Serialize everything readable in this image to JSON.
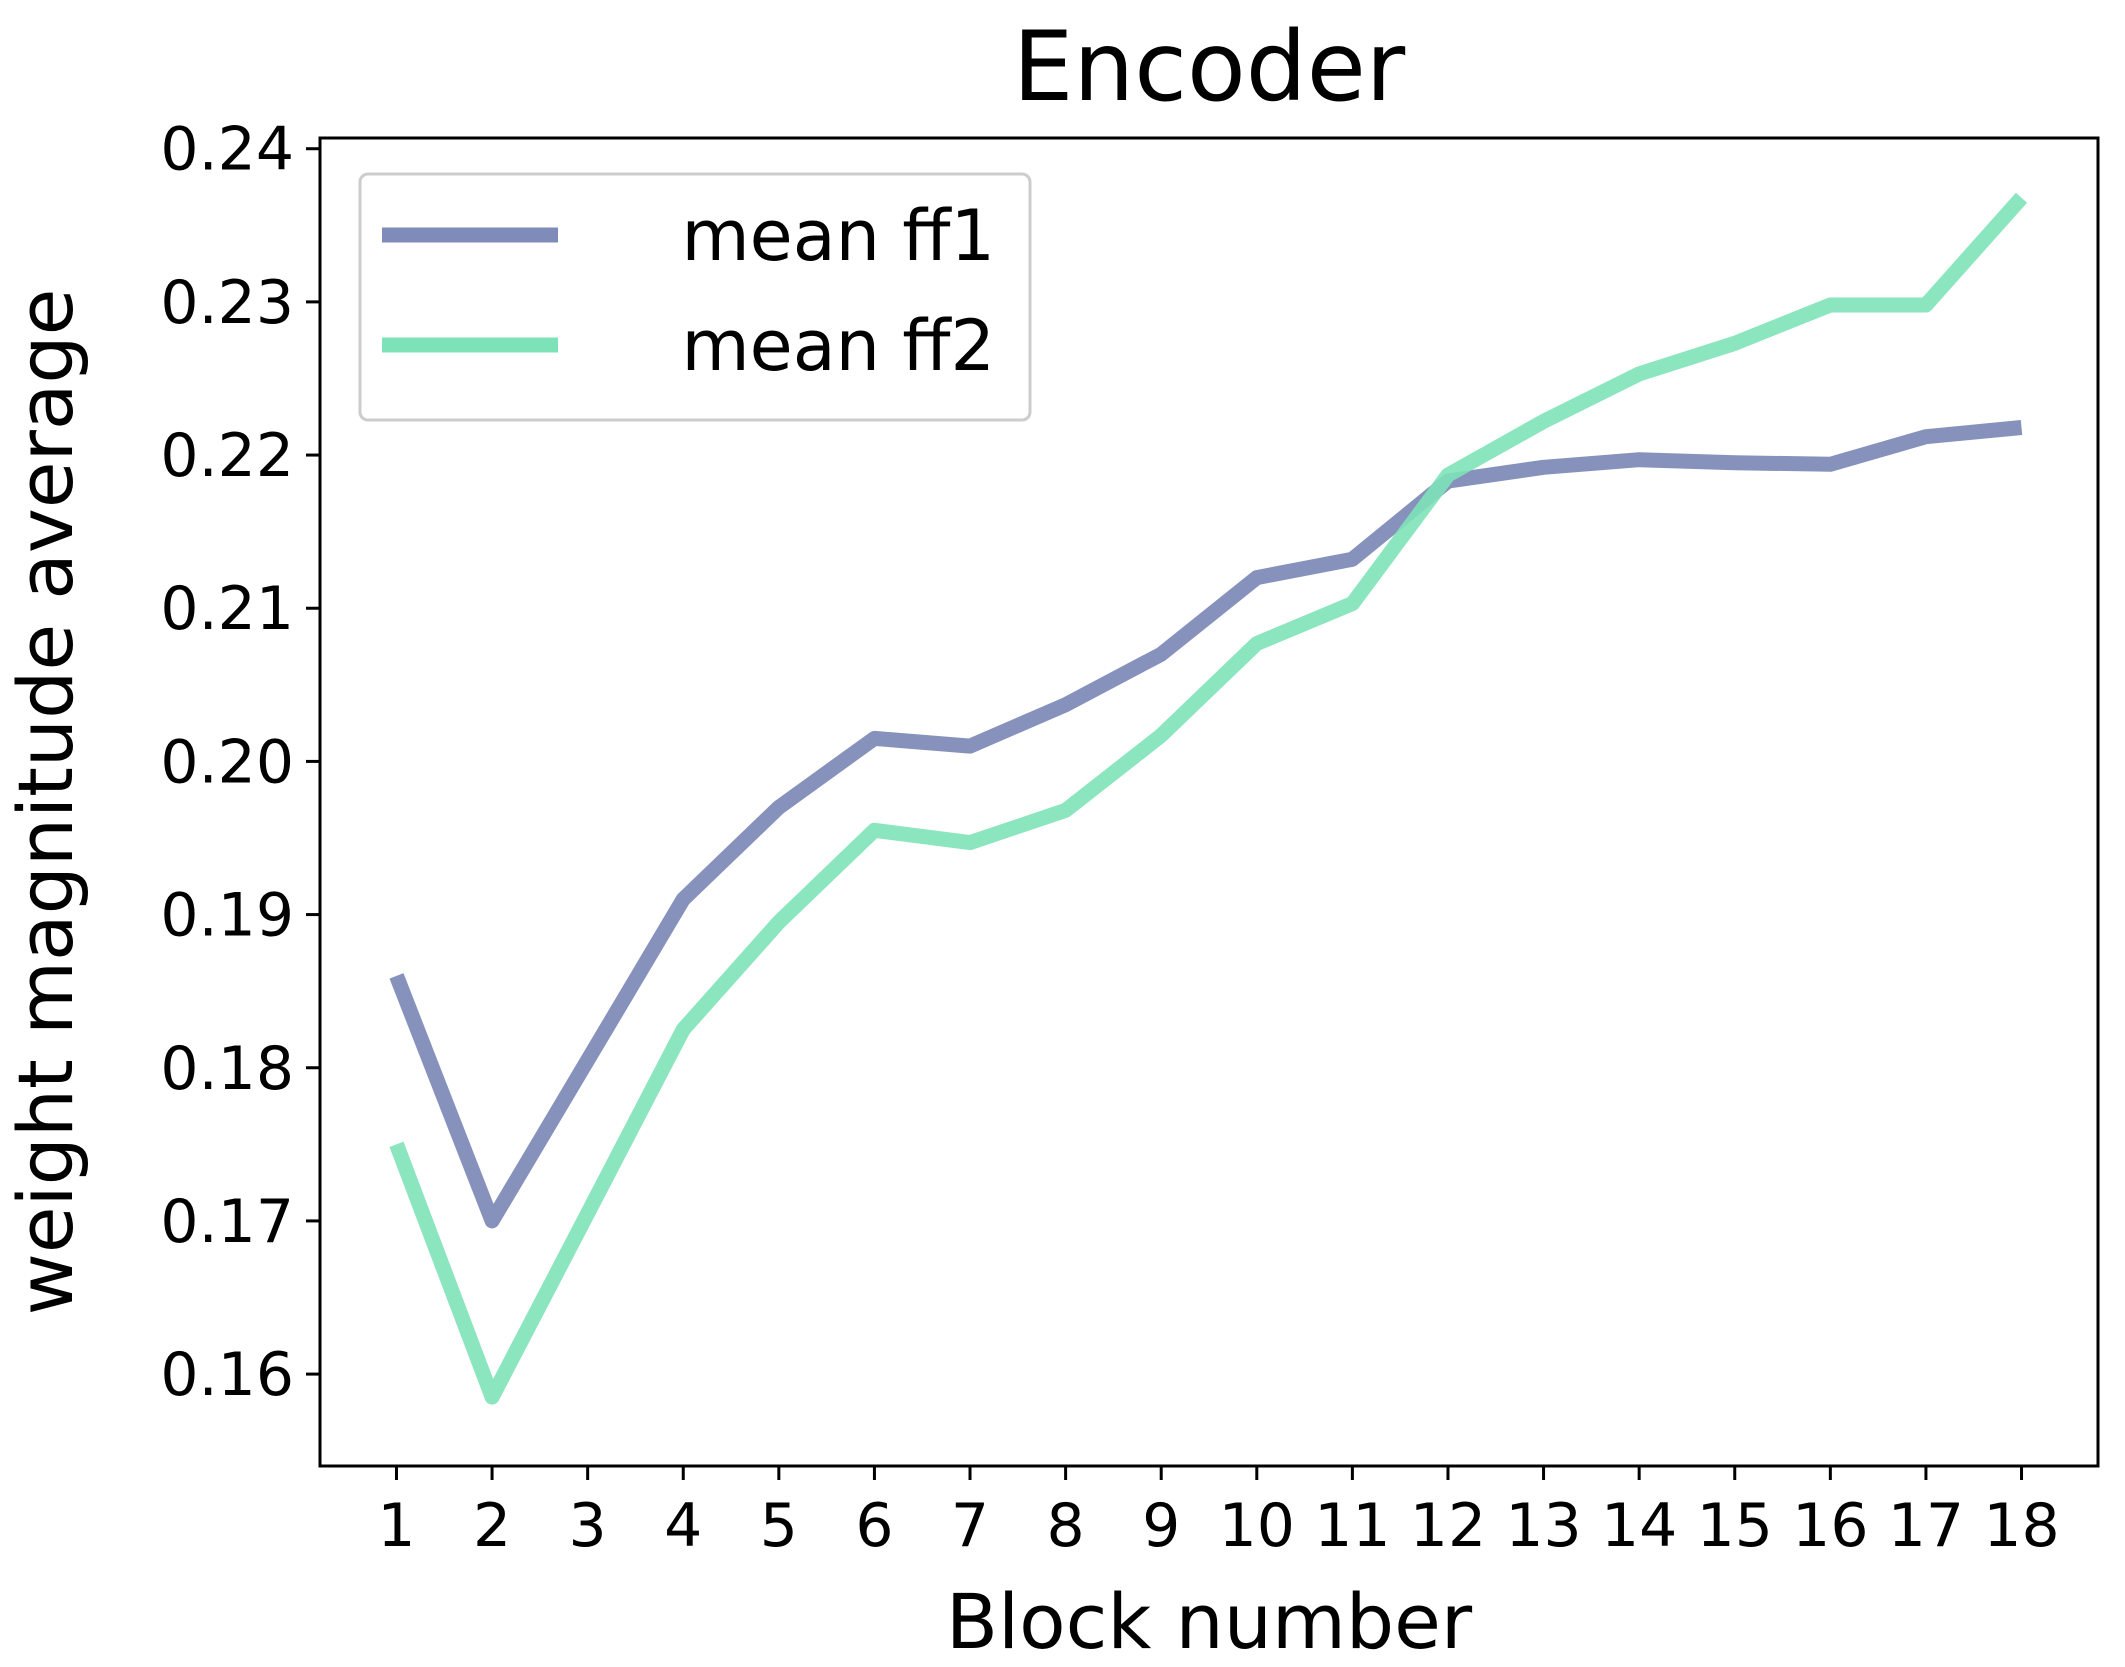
{
  "chart_data": {
    "type": "line",
    "title": "Encoder",
    "xlabel": "Block number",
    "ylabel": "weight magnitude average",
    "x": [
      1,
      2,
      3,
      4,
      5,
      6,
      7,
      8,
      9,
      10,
      11,
      12,
      13,
      14,
      15,
      16,
      17,
      18
    ],
    "xticks": [
      "1",
      "2",
      "3",
      "4",
      "5",
      "6",
      "7",
      "8",
      "9",
      "10",
      "11",
      "12",
      "13",
      "14",
      "15",
      "16",
      "17",
      "18"
    ],
    "yticks": [
      "0.16",
      "0.17",
      "0.18",
      "0.19",
      "0.20",
      "0.21",
      "0.22",
      "0.23",
      "0.24"
    ],
    "ylim": [
      0.154,
      0.2407
    ],
    "xlim": [
      0.2,
      18.8
    ],
    "grid": false,
    "legend_position": "top-left",
    "series": [
      {
        "name": "mean ff1",
        "color": "#7f8bb8",
        "values": [
          0.186,
          0.17,
          0.1805,
          0.191,
          0.197,
          0.2015,
          0.201,
          0.2037,
          0.207,
          0.212,
          0.2132,
          0.2183,
          0.2192,
          0.2197,
          0.2195,
          0.2194,
          0.2212,
          0.2218
        ]
      },
      {
        "name": "mean ff2",
        "color": "#7ee2b8",
        "values": [
          0.175,
          0.1585,
          0.1705,
          0.1825,
          0.1895,
          0.1955,
          0.1947,
          0.1968,
          0.2017,
          0.2077,
          0.2103,
          0.2187,
          0.2222,
          0.2253,
          0.2273,
          0.2298,
          0.2298,
          0.2368
        ]
      }
    ]
  }
}
